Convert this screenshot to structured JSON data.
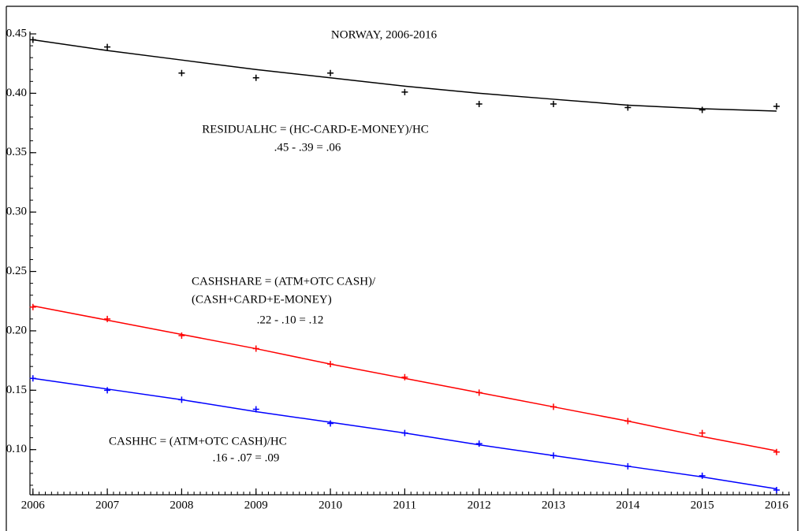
{
  "chart_data": {
    "type": "scatter",
    "title": "NORWAY, 2006-2016",
    "annotations": [
      "RESIDUALHC = (HC-CARD-E-MONEY)/HC",
      ".45 - .39 = .06",
      "CASHSHARE = (ATM+OTC CASH)/",
      "(CASH+CARD+E-MONEY)",
      ".22 - .10 = .12",
      "CASHHC = (ATM+OTC CASH)/HC",
      ".16 - .07 = .09"
    ],
    "x": [
      2006,
      2007,
      2008,
      2009,
      2010,
      2011,
      2012,
      2013,
      2014,
      2015,
      2016
    ],
    "series": [
      {
        "color": "#000000",
        "values": [
          0.445,
          0.439,
          0.417,
          0.413,
          0.417,
          0.401,
          0.391,
          0.391,
          0.388,
          0.386,
          0.389
        ],
        "fit": [
          0.445,
          0.436,
          0.428,
          0.42,
          0.413,
          0.406,
          0.4,
          0.395,
          0.39,
          0.387,
          0.385
        ]
      },
      {
        "color": "#ff0000",
        "values": [
          0.22,
          0.21,
          0.196,
          0.185,
          0.172,
          0.161,
          0.148,
          0.136,
          0.124,
          0.114,
          0.098
        ],
        "fit": [
          0.221,
          0.209,
          0.197,
          0.185,
          0.172,
          0.16,
          0.148,
          0.136,
          0.124,
          0.111,
          0.099
        ]
      },
      {
        "color": "#0000ff",
        "values": [
          0.16,
          0.15,
          0.142,
          0.134,
          0.122,
          0.114,
          0.105,
          0.095,
          0.086,
          0.078,
          0.066
        ],
        "fit": [
          0.16,
          0.151,
          0.142,
          0.132,
          0.123,
          0.114,
          0.104,
          0.095,
          0.086,
          0.077,
          0.067
        ]
      }
    ],
    "xlim": [
      2005.96,
      2016.18
    ],
    "ylim": [
      0.062,
      0.452
    ],
    "xticks": [
      2006,
      2007,
      2008,
      2009,
      2010,
      2011,
      2012,
      2013,
      2014,
      2015,
      2016
    ],
    "yticks": [
      {
        "value": 0.1,
        "label": "0.10"
      },
      0.15,
      {
        "value": 0.2,
        "label": "0.20"
      },
      0.25,
      {
        "value": 0.3,
        "label": "0.30"
      },
      0.35,
      {
        "value": 0.4,
        "label": "0.40"
      },
      0.45
    ],
    "grid": false
  }
}
